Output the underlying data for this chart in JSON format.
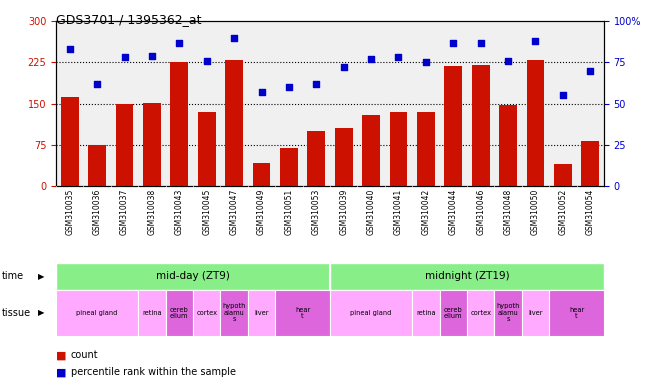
{
  "title": "GDS3701 / 1395362_at",
  "samples": [
    "GSM310035",
    "GSM310036",
    "GSM310037",
    "GSM310038",
    "GSM310043",
    "GSM310045",
    "GSM310047",
    "GSM310049",
    "GSM310051",
    "GSM310053",
    "GSM310039",
    "GSM310040",
    "GSM310041",
    "GSM310042",
    "GSM310044",
    "GSM310046",
    "GSM310048",
    "GSM310050",
    "GSM310052",
    "GSM310054"
  ],
  "counts": [
    162,
    75,
    150,
    152,
    225,
    135,
    230,
    42,
    70,
    100,
    105,
    130,
    135,
    135,
    218,
    220,
    148,
    230,
    40,
    82
  ],
  "percentiles": [
    83,
    62,
    78,
    79,
    87,
    76,
    90,
    57,
    60,
    62,
    72,
    77,
    78,
    75,
    87,
    87,
    76,
    88,
    55,
    70
  ],
  "ylim_left": [
    0,
    300
  ],
  "ylim_right": [
    0,
    100
  ],
  "yticks_left": [
    0,
    75,
    150,
    225,
    300
  ],
  "yticks_right": [
    0,
    25,
    50,
    75,
    100
  ],
  "bar_color": "#cc1100",
  "dot_color": "#0000cc",
  "plot_bg_color": "#f0f0f0",
  "xlabel_bg_color": "#d0d0d0",
  "time_color": "#88ee88",
  "tissue_color_light": "#ffaaff",
  "tissue_color_dark": "#dd66dd",
  "time_groups": [
    {
      "label": "mid-day (ZT9)",
      "start": 0,
      "end": 10
    },
    {
      "label": "midnight (ZT19)",
      "start": 10,
      "end": 20
    }
  ],
  "tissue_groups": [
    {
      "label": "pineal gland",
      "start": 0,
      "end": 3,
      "dark": false
    },
    {
      "label": "retina",
      "start": 3,
      "end": 4,
      "dark": false
    },
    {
      "label": "cereb\nellum",
      "start": 4,
      "end": 5,
      "dark": true
    },
    {
      "label": "cortex",
      "start": 5,
      "end": 6,
      "dark": false
    },
    {
      "label": "hypoth\nalamu\ns",
      "start": 6,
      "end": 7,
      "dark": true
    },
    {
      "label": "liver",
      "start": 7,
      "end": 8,
      "dark": false
    },
    {
      "label": "hear\nt",
      "start": 8,
      "end": 10,
      "dark": true
    },
    {
      "label": "pineal gland",
      "start": 10,
      "end": 13,
      "dark": false
    },
    {
      "label": "retina",
      "start": 13,
      "end": 14,
      "dark": false
    },
    {
      "label": "cereb\nellum",
      "start": 14,
      "end": 15,
      "dark": true
    },
    {
      "label": "cortex",
      "start": 15,
      "end": 16,
      "dark": false
    },
    {
      "label": "hypoth\nalamu\ns",
      "start": 16,
      "end": 17,
      "dark": true
    },
    {
      "label": "liver",
      "start": 17,
      "end": 18,
      "dark": false
    },
    {
      "label": "hear\nt",
      "start": 18,
      "end": 20,
      "dark": true
    }
  ],
  "legend_count_label": "count",
  "legend_pct_label": "percentile rank within the sample",
  "time_label": "time",
  "tissue_label": "tissue"
}
